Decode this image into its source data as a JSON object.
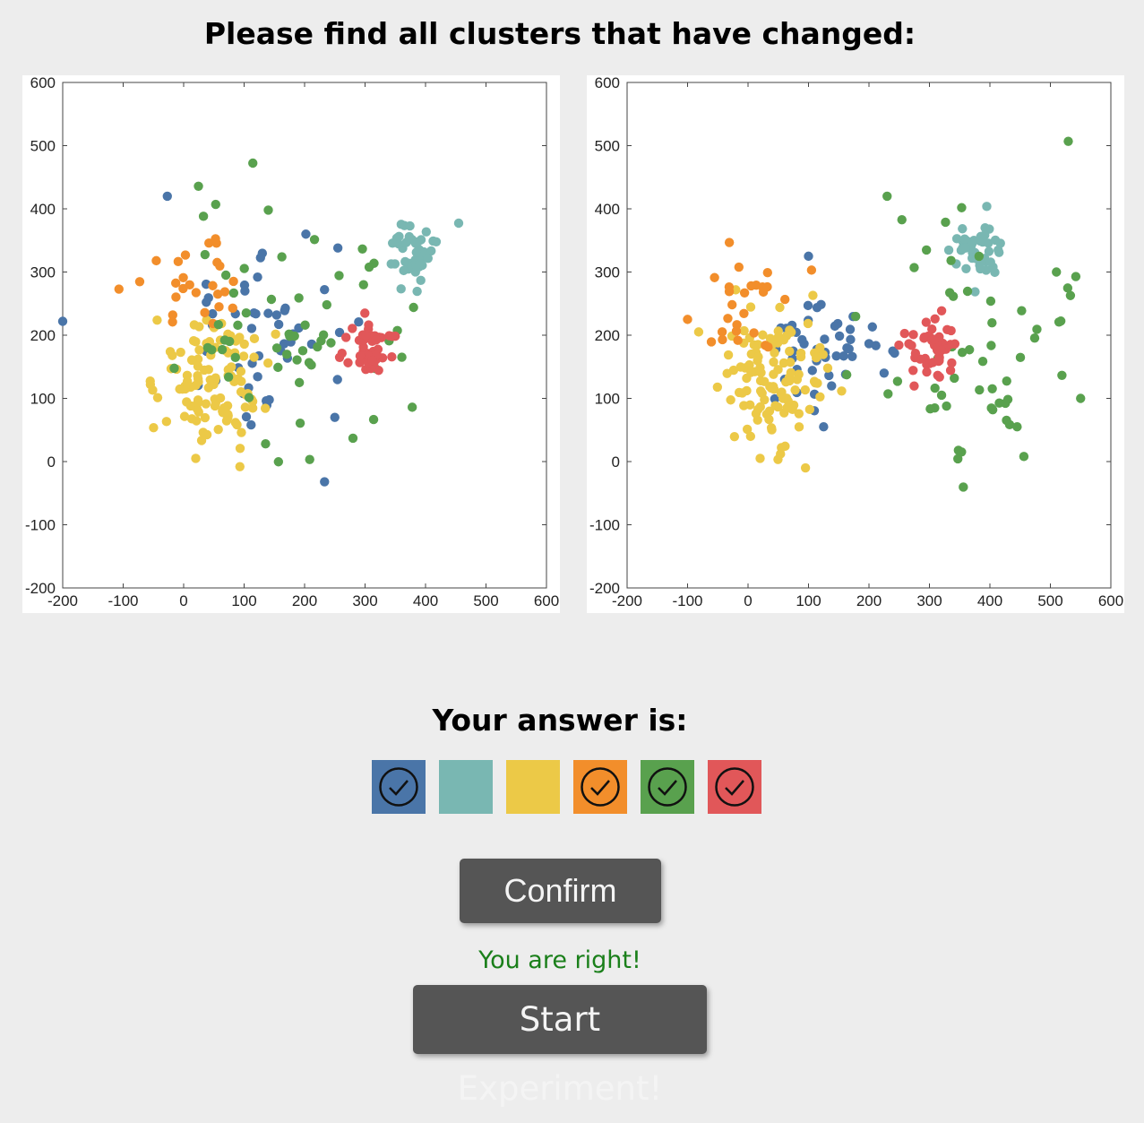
{
  "title": "Please find all clusters that have changed:",
  "answer_label": "Your answer is:",
  "feedback": "You are right!",
  "buttons": {
    "confirm": "Confirm",
    "start": "Start Experiment!"
  },
  "swatches": [
    {
      "name": "blue",
      "color": "#4a75a8",
      "checked": true
    },
    {
      "name": "teal",
      "color": "#79b7b2",
      "checked": false
    },
    {
      "name": "yellow",
      "color": "#ecc947",
      "checked": false
    },
    {
      "name": "orange",
      "color": "#f28e2b",
      "checked": true
    },
    {
      "name": "green",
      "color": "#59a14e",
      "checked": true
    },
    {
      "name": "red",
      "color": "#e15759",
      "checked": true
    }
  ],
  "chart_data": [
    {
      "type": "scatter",
      "xlim": [
        -200,
        600
      ],
      "ylim": [
        -200,
        600
      ],
      "xticks": [
        "-200",
        "-100",
        "0",
        "100",
        "200",
        "300",
        "400",
        "500",
        "600"
      ],
      "yticks": [
        "-200",
        "-100",
        "0",
        "100",
        "200",
        "300",
        "400",
        "500",
        "600"
      ],
      "clusters": [
        {
          "name": "blue",
          "color": "#4a75a8",
          "center": [
            130,
            190
          ],
          "spread": [
            75,
            80
          ],
          "count": 45,
          "outliers": [
            [
              -200,
              222
            ],
            [
              -27,
              420
            ],
            [
              255,
              338
            ],
            [
              233,
              -32
            ],
            [
              250,
              70
            ]
          ]
        },
        {
          "name": "teal",
          "color": "#79b7b2",
          "center": [
            380,
            330
          ],
          "spread": [
            22,
            28
          ],
          "count": 45,
          "outliers": []
        },
        {
          "name": "yellow",
          "color": "#ecc947",
          "center": [
            50,
            130
          ],
          "spread": [
            45,
            45
          ],
          "count": 110,
          "outliers": [
            [
              20,
              5
            ],
            [
              93,
              -8
            ],
            [
              -55,
              122
            ]
          ]
        },
        {
          "name": "orange",
          "color": "#f28e2b",
          "center": [
            20,
            280
          ],
          "spread": [
            40,
            45
          ],
          "count": 25,
          "outliers": [
            [
              -107,
              273
            ]
          ]
        },
        {
          "name": "green",
          "color": "#59a14e",
          "center": [
            170,
            220
          ],
          "spread": [
            80,
            90
          ],
          "count": 55,
          "outliers": [
            [
              53,
              407
            ],
            [
              140,
              398
            ],
            [
              378,
              86
            ],
            [
              280,
              37
            ]
          ]
        },
        {
          "name": "red",
          "color": "#e15759",
          "center": [
            305,
            180
          ],
          "spread": [
            20,
            22
          ],
          "count": 45,
          "outliers": []
        }
      ]
    },
    {
      "type": "scatter",
      "xlim": [
        -200,
        600
      ],
      "ylim": [
        -200,
        600
      ],
      "xticks": [
        "-200",
        "-100",
        "0",
        "100",
        "200",
        "300",
        "400",
        "500",
        "600"
      ],
      "yticks": [
        "-200",
        "-100",
        "0",
        "100",
        "200",
        "300",
        "400",
        "500",
        "600"
      ],
      "clusters": [
        {
          "name": "blue",
          "color": "#4a75a8",
          "center": [
            120,
            180
          ],
          "spread": [
            45,
            40
          ],
          "count": 45,
          "outliers": [
            [
              100,
              325
            ],
            [
              125,
              55
            ],
            [
              225,
              140
            ]
          ]
        },
        {
          "name": "teal",
          "color": "#79b7b2",
          "center": [
            380,
            330
          ],
          "spread": [
            22,
            28
          ],
          "count": 45,
          "outliers": []
        },
        {
          "name": "yellow",
          "color": "#ecc947",
          "center": [
            45,
            125
          ],
          "spread": [
            45,
            45
          ],
          "count": 110,
          "outliers": [
            [
              95,
              -10
            ],
            [
              20,
              5
            ]
          ]
        },
        {
          "name": "orange",
          "color": "#f28e2b",
          "center": [
            -10,
            255
          ],
          "spread": [
            40,
            40
          ],
          "count": 25,
          "outliers": [
            [
              -100,
              225
            ],
            [
              105,
              303
            ]
          ]
        },
        {
          "name": "green",
          "color": "#59a14e",
          "center": [
            360,
            200
          ],
          "spread": [
            90,
            100
          ],
          "count": 55,
          "outliers": [
            [
              230,
              420
            ],
            [
              550,
              100
            ],
            [
              510,
              300
            ],
            [
              445,
              55
            ]
          ]
        },
        {
          "name": "red",
          "color": "#e15759",
          "center": [
            305,
            180
          ],
          "spread": [
            22,
            25
          ],
          "count": 45,
          "outliers": []
        }
      ]
    }
  ]
}
